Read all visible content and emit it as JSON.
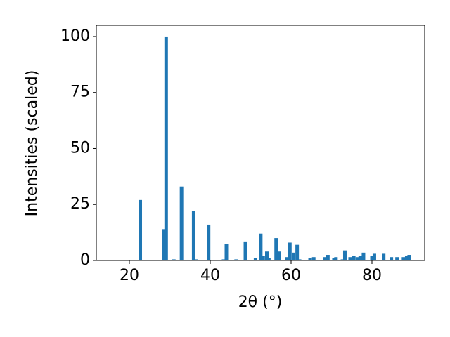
{
  "chart_data": {
    "type": "bar",
    "xlabel": "2θ (°)",
    "ylabel": "Intensities (scaled)",
    "color": "#1f77b4",
    "x": [
      22.7,
      28.6,
      29.1,
      31.0,
      32.9,
      35.9,
      36.6,
      39.6,
      43.3,
      44.0,
      46.4,
      48.7,
      51.2,
      52.5,
      53.1,
      54.0,
      54.5,
      56.3,
      57.0,
      59.0,
      59.7,
      60.6,
      61.5,
      62.1,
      64.7,
      65.6,
      68.3,
      69.1,
      70.6,
      71.1,
      72.7,
      73.3,
      74.6,
      75.5,
      76.4,
      77.1,
      77.9,
      80.0,
      80.6,
      82.9,
      84.8,
      86.2,
      87.8,
      88.6,
      89.2
    ],
    "values": [
      27,
      14,
      100,
      0.5,
      33,
      22,
      0.5,
      16,
      0.5,
      7.5,
      0.5,
      8.5,
      1,
      12,
      2,
      4,
      1,
      10,
      4,
      1.5,
      8,
      3.5,
      7,
      0.5,
      1,
      1.5,
      1.5,
      2.5,
      1,
      1.5,
      0.5,
      4.5,
      1.5,
      2,
      1.5,
      2,
      3.5,
      2,
      3,
      3,
      1.5,
      1.5,
      1.5,
      2,
      2.5
    ],
    "xlim": [
      11.83,
      93.04
    ],
    "ylim": [
      0,
      105
    ],
    "xticks": [
      20,
      40,
      60,
      80
    ],
    "yticks": [
      0,
      25,
      50,
      75,
      100
    ]
  }
}
